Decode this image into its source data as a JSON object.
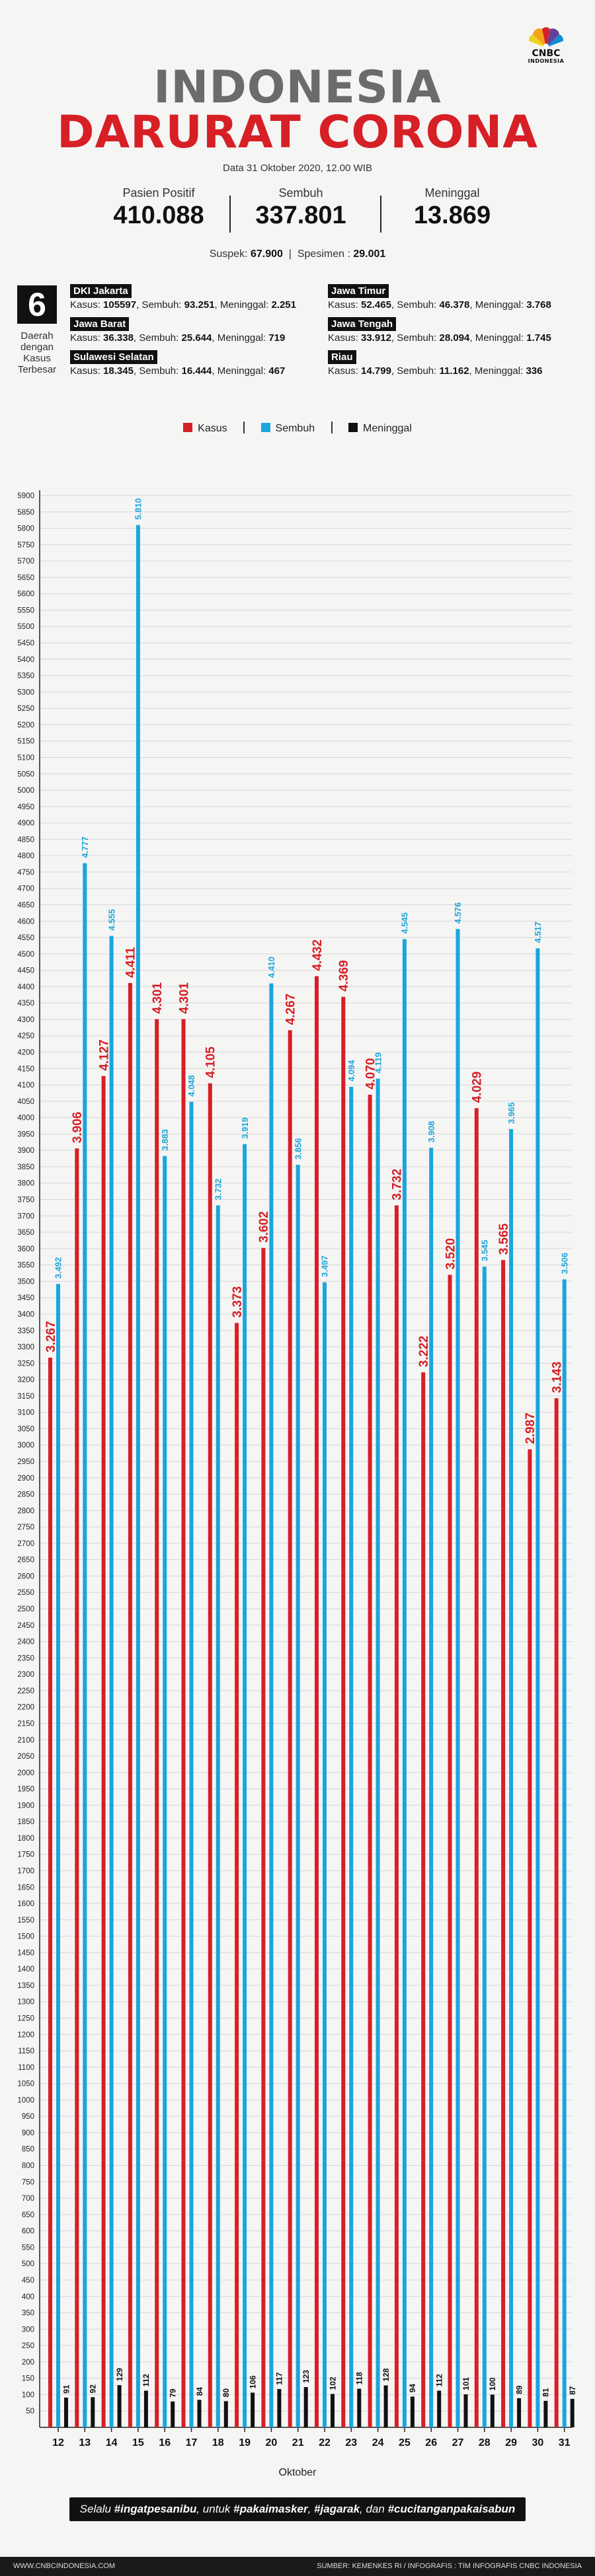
{
  "logo": {
    "text": "CNBC",
    "sub": "INDONESIA"
  },
  "header": {
    "title_line1": "INDONESIA",
    "title_line2": "DARURAT CORONA",
    "date": "Data 31 Oktober 2020, 12.00 WIB"
  },
  "stats": [
    {
      "label": "Pasien Positif",
      "value": "410.088"
    },
    {
      "label": "Sembuh",
      "value": "337.801"
    },
    {
      "label": "Meninggal",
      "value": "13.869"
    }
  ],
  "substats": {
    "suspek_label": "Suspek:",
    "suspek_value": "67.900",
    "spesimen_label": "Spesimen :",
    "spesimen_value": "29.001"
  },
  "regions_intro": {
    "number": "6",
    "caption": "Daerah dengan Kasus Terbesar"
  },
  "regions": [
    {
      "name": "DKI Jakarta",
      "kasus": "105597",
      "sembuh": "93.251",
      "meninggal": "2.251"
    },
    {
      "name": "Jawa Barat",
      "kasus": "36.338",
      "sembuh": "25.644",
      "meninggal": "719"
    },
    {
      "name": "Sulawesi Selatan",
      "kasus": "18.345",
      "sembuh": "16.444",
      "meninggal": "467"
    },
    {
      "name": "Jawa Timur",
      "kasus": "52.465",
      "sembuh": "46.378",
      "meninggal": "3.768"
    },
    {
      "name": "Jawa Tengah",
      "kasus": "33.912",
      "sembuh": "28.094",
      "meninggal": "1.745"
    },
    {
      "name": "Riau",
      "kasus": "14.799",
      "sembuh": "11.162",
      "meninggal": "336"
    }
  ],
  "region_labels": {
    "kasus": "Kasus:",
    "sembuh": "Sembuh:",
    "meninggal": "Meninggal:"
  },
  "legend": {
    "kasus": "Kasus",
    "sembuh": "Sembuh",
    "meninggal": "Meninggal"
  },
  "colors": {
    "kasus": "#d71f26",
    "sembuh": "#1aa6dc",
    "meninggal": "#111111"
  },
  "chart_data": {
    "type": "bar",
    "xlabel": "Oktober",
    "ylabel": "",
    "ylim": [
      0,
      5900
    ],
    "ytick_step": 50,
    "grid": true,
    "categories": [
      "12",
      "13",
      "14",
      "15",
      "16",
      "17",
      "18",
      "19",
      "20",
      "21",
      "22",
      "23",
      "24",
      "25",
      "26",
      "27",
      "28",
      "29",
      "30",
      "31"
    ],
    "series": [
      {
        "name": "Kasus",
        "values": [
          3267,
          3906,
          4127,
          4411,
          4301,
          4301,
          4105,
          3373,
          3602,
          4267,
          4432,
          4369,
          4070,
          3732,
          3222,
          3520,
          4029,
          3565,
          2987,
          3143
        ],
        "labels": [
          "3.267",
          "3.906",
          "4.127",
          "4.411",
          "4.301",
          "4.301",
          "4.105",
          "3.373",
          "3.602",
          "4.267",
          "4.432",
          "4.369",
          "4.070",
          "3.732",
          "3.222",
          "3.520",
          "4.029",
          "3.565",
          "2.987",
          "3.143"
        ]
      },
      {
        "name": "Sembuh",
        "values": [
          3492,
          4777,
          4555,
          5810,
          3883,
          4048,
          3732,
          3919,
          4410,
          3856,
          3497,
          4094,
          4119,
          4545,
          3908,
          4576,
          3545,
          3965,
          4517,
          3506
        ],
        "labels": [
          "3.492",
          "4.777",
          "4.555",
          "5.810",
          "3.883",
          "4.048",
          "3.732",
          "3.919",
          "4.410",
          "3.856",
          "3.497",
          "4.094",
          "4.119",
          "4.545",
          "3.908",
          "4.576",
          "3.545",
          "3.965",
          "4.517",
          "3.506"
        ]
      },
      {
        "name": "Meninggal",
        "values": [
          91,
          92,
          129,
          112,
          79,
          84,
          80,
          106,
          117,
          123,
          102,
          118,
          128,
          94,
          112,
          101,
          100,
          89,
          81,
          87
        ],
        "labels": [
          "91",
          "92",
          "129",
          "112",
          "79",
          "84",
          "80",
          "106",
          "117",
          "123",
          "102",
          "118",
          "128",
          "94",
          "112",
          "101",
          "100",
          "89",
          "81",
          "87"
        ]
      }
    ]
  },
  "banner": {
    "p1": "Selalu ",
    "h1": "#ingatpesanibu",
    "p2": ", untuk ",
    "h2": "#pakaimasker",
    "p3": ", ",
    "h3": "#jagarak",
    "p4": ", dan ",
    "h4": "#cucitanganpakaisabun"
  },
  "footer": {
    "left": "WWW.CNBCINDONESIA.COM",
    "right": "SUMBER: KEMENKES RI / INFOGRAFIS : TIM INFOGRAFIS CNBC INDONESIA"
  }
}
